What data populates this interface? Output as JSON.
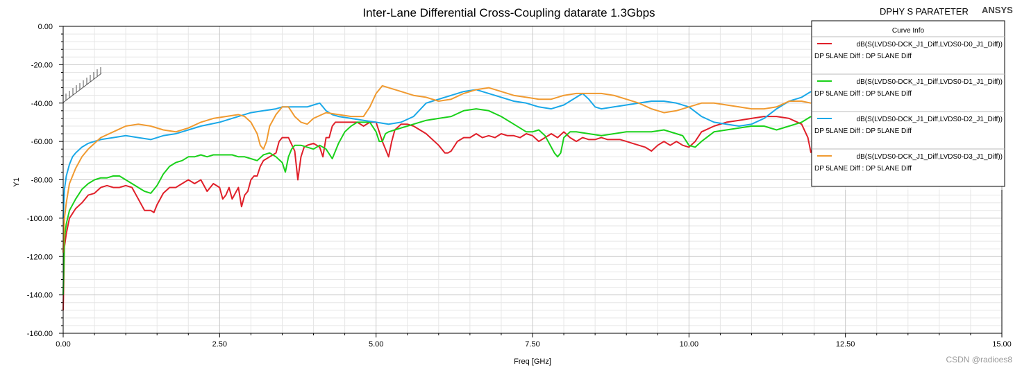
{
  "header": {
    "title": "Inter-Lane Differential Cross-Coupling datarate 1.3Gbps",
    "project": "DPHY S PARATETER",
    "brand": "ANSYS"
  },
  "watermark": "CSDN @radioes8",
  "chart_data": {
    "type": "line",
    "title": "Inter-Lane Differential Cross-Coupling datarate 1.3Gbps",
    "xlabel": "Freq [GHz]",
    "ylabel": "Y1",
    "xlim": [
      0,
      15
    ],
    "ylim": [
      -160,
      0
    ],
    "xticks": [
      0,
      2.5,
      5,
      7.5,
      10,
      12.5,
      15
    ],
    "xtick_labels": [
      "0.00",
      "2.50",
      "5.00",
      "7.50",
      "10.00",
      "12.50",
      "15.00"
    ],
    "yticks": [
      0,
      -20,
      -40,
      -60,
      -80,
      -100,
      -120,
      -140,
      -160
    ],
    "ytick_labels": [
      "0.00",
      "-20.00",
      "-40.00",
      "-60.00",
      "-80.00",
      "-100.00",
      "-120.00",
      "-140.00",
      "-160.00"
    ],
    "grid": true,
    "legend": {
      "title": "Curve Info",
      "position": "top-right"
    },
    "series": [
      {
        "name": "dB(S(LVDS0-DCK_J1_Diff,LVDS0-D0_J1_Diff))",
        "setup": "DP 5LANE Diff : DP 5LANE Diff",
        "color": "#e0202a",
        "x": [
          0,
          0.02,
          0.05,
          0.1,
          0.2,
          0.3,
          0.4,
          0.5,
          0.6,
          0.7,
          0.8,
          0.9,
          1.0,
          1.1,
          1.2,
          1.3,
          1.4,
          1.45,
          1.5,
          1.6,
          1.7,
          1.8,
          1.9,
          2.0,
          2.1,
          2.2,
          2.3,
          2.4,
          2.5,
          2.55,
          2.6,
          2.65,
          2.7,
          2.75,
          2.8,
          2.85,
          2.9,
          2.95,
          3.0,
          3.05,
          3.1,
          3.15,
          3.2,
          3.3,
          3.4,
          3.45,
          3.5,
          3.6,
          3.7,
          3.75,
          3.8,
          3.85,
          3.9,
          4.0,
          4.1,
          4.15,
          4.2,
          4.25,
          4.3,
          4.35,
          4.4,
          4.5,
          4.6,
          4.7,
          4.8,
          4.9,
          5.0,
          5.05,
          5.1,
          5.2,
          5.25,
          5.3,
          5.4,
          5.5,
          5.6,
          5.8,
          6.0,
          6.1,
          6.15,
          6.2,
          6.3,
          6.4,
          6.5,
          6.6,
          6.7,
          6.8,
          6.9,
          7.0,
          7.1,
          7.2,
          7.3,
          7.4,
          7.5,
          7.6,
          7.7,
          7.8,
          7.9,
          8.0,
          8.1,
          8.2,
          8.3,
          8.4,
          8.5,
          8.6,
          8.7,
          8.8,
          8.9,
          9.0,
          9.1,
          9.2,
          9.3,
          9.4,
          9.5,
          9.6,
          9.7,
          9.8,
          9.9,
          10.0,
          10.1,
          10.2,
          10.4,
          10.6,
          10.8,
          11.0,
          11.2,
          11.4,
          11.6,
          11.8,
          11.9,
          11.95
        ],
        "values": [
          -148,
          -115,
          -108,
          -100,
          -95,
          -92,
          -88,
          -87,
          -84,
          -83,
          -84,
          -84,
          -83,
          -84,
          -90,
          -96,
          -96,
          -97,
          -93,
          -87,
          -84,
          -84,
          -82,
          -80,
          -82,
          -80,
          -86,
          -82,
          -84,
          -90,
          -88,
          -84,
          -90,
          -87,
          -84,
          -94,
          -88,
          -86,
          -80,
          -78,
          -78,
          -73,
          -70,
          -68,
          -66,
          -60,
          -58,
          -58,
          -65,
          -80,
          -68,
          -63,
          -62,
          -61,
          -63,
          -68,
          -58,
          -58,
          -52,
          -50,
          -50,
          -50,
          -50,
          -50,
          -52,
          -50,
          -50,
          -55,
          -60,
          -68,
          -60,
          -54,
          -51,
          -51,
          -52,
          -56,
          -62,
          -66,
          -66,
          -65,
          -60,
          -58,
          -58,
          -56,
          -58,
          -57,
          -58,
          -56,
          -57,
          -57,
          -58,
          -56,
          -57,
          -60,
          -58,
          -56,
          -58,
          -55,
          -58,
          -60,
          -58,
          -59,
          -59,
          -58,
          -59,
          -59,
          -59,
          -60,
          -61,
          -62,
          -63,
          -65,
          -62,
          -60,
          -62,
          -60,
          -62,
          -63,
          -60,
          -55,
          -52,
          -50,
          -49,
          -48,
          -47,
          -47,
          -48,
          -51,
          -58,
          -66
        ]
      },
      {
        "name": "dB(S(LVDS0-DCK_J1_Diff,LVDS0-D1_J1_Diff))",
        "setup": "DP 5LANE Diff : DP 5LANE Diff",
        "color": "#1ad11a",
        "x": [
          0,
          0.02,
          0.05,
          0.1,
          0.2,
          0.3,
          0.4,
          0.5,
          0.6,
          0.7,
          0.8,
          0.9,
          1.0,
          1.1,
          1.2,
          1.3,
          1.4,
          1.5,
          1.6,
          1.7,
          1.8,
          1.9,
          2.0,
          2.1,
          2.2,
          2.3,
          2.4,
          2.5,
          2.6,
          2.7,
          2.8,
          2.9,
          3.0,
          3.1,
          3.2,
          3.3,
          3.4,
          3.5,
          3.55,
          3.6,
          3.65,
          3.7,
          3.8,
          3.9,
          4.0,
          4.1,
          4.2,
          4.3,
          4.4,
          4.5,
          4.6,
          4.7,
          4.8,
          4.9,
          5.0,
          5.05,
          5.1,
          5.15,
          5.2,
          5.3,
          5.4,
          5.5,
          5.6,
          5.8,
          6.0,
          6.2,
          6.4,
          6.6,
          6.8,
          7.0,
          7.2,
          7.4,
          7.5,
          7.6,
          7.7,
          7.8,
          7.85,
          7.9,
          7.95,
          8.0,
          8.1,
          8.2,
          8.4,
          8.6,
          8.8,
          9.0,
          9.2,
          9.4,
          9.6,
          9.8,
          9.9,
          10.0,
          10.1,
          10.2,
          10.4,
          10.6,
          10.8,
          11.0,
          11.2,
          11.4,
          11.6,
          11.8,
          11.95
        ],
        "values": [
          -140,
          -110,
          -103,
          -96,
          -90,
          -85,
          -82,
          -80,
          -79,
          -79,
          -78,
          -78,
          -80,
          -82,
          -84,
          -86,
          -87,
          -83,
          -77,
          -73,
          -71,
          -70,
          -68,
          -68,
          -67,
          -68,
          -67,
          -67,
          -67,
          -67,
          -68,
          -68,
          -69,
          -70,
          -67,
          -66,
          -68,
          -71,
          -76,
          -68,
          -64,
          -62,
          -62,
          -63,
          -64,
          -62,
          -64,
          -69,
          -61,
          -55,
          -52,
          -50,
          -50,
          -50,
          -55,
          -60,
          -60,
          -56,
          -55,
          -54,
          -53,
          -52,
          -51,
          -49,
          -48,
          -47,
          -44,
          -43,
          -44,
          -47,
          -51,
          -55,
          -55,
          -54,
          -57,
          -63,
          -66,
          -68,
          -66,
          -58,
          -55,
          -55,
          -56,
          -57,
          -56,
          -55,
          -55,
          -55,
          -54,
          -56,
          -57,
          -62,
          -63,
          -60,
          -55,
          -54,
          -53,
          -52,
          -52,
          -54,
          -52,
          -50,
          -47
        ]
      },
      {
        "name": "dB(S(LVDS0-DCK_J1_Diff,LVDS0-D2_J1_Diff))",
        "setup": "DP 5LANE Diff : DP 5LANE Diff",
        "color": "#1aa8e8",
        "x": [
          0,
          0.02,
          0.05,
          0.1,
          0.15,
          0.2,
          0.3,
          0.4,
          0.5,
          0.6,
          0.8,
          1.0,
          1.2,
          1.4,
          1.6,
          1.8,
          2.0,
          2.2,
          2.5,
          2.8,
          3.0,
          3.2,
          3.4,
          3.5,
          3.6,
          3.8,
          3.9,
          4.0,
          4.1,
          4.2,
          4.3,
          4.4,
          4.6,
          4.8,
          5.0,
          5.2,
          5.4,
          5.6,
          5.8,
          5.9,
          6.0,
          6.2,
          6.4,
          6.6,
          6.8,
          7.0,
          7.2,
          7.4,
          7.6,
          7.8,
          8.0,
          8.2,
          8.3,
          8.4,
          8.5,
          8.6,
          8.8,
          9.0,
          9.2,
          9.4,
          9.6,
          9.8,
          10.0,
          10.2,
          10.4,
          10.6,
          10.8,
          11.0,
          11.2,
          11.4,
          11.6,
          11.8,
          11.95
        ],
        "values": [
          -100,
          -85,
          -78,
          -72,
          -68,
          -66,
          -63,
          -61,
          -60,
          -59,
          -58,
          -57,
          -58,
          -59,
          -57,
          -56,
          -54,
          -52,
          -50,
          -47,
          -45,
          -44,
          -43,
          -42,
          -42,
          -42,
          -42,
          -41,
          -40,
          -44,
          -46,
          -47,
          -48,
          -49,
          -50,
          -51,
          -50,
          -47,
          -40,
          -39,
          -38,
          -36,
          -34,
          -33,
          -35,
          -37,
          -39,
          -40,
          -42,
          -43,
          -41,
          -37,
          -35,
          -38,
          -42,
          -43,
          -42,
          -41,
          -40,
          -39,
          -39,
          -40,
          -42,
          -47,
          -50,
          -51,
          -52,
          -51,
          -48,
          -43,
          -39,
          -37,
          -34
        ]
      },
      {
        "name": "dB(S(LVDS0-DCK_J1_Diff,LVDS0-D3_J1_Diff))",
        "setup": "DP 5LANE Diff : DP 5LANE Diff",
        "color": "#f09a30",
        "x": [
          0,
          0.02,
          0.05,
          0.1,
          0.2,
          0.3,
          0.4,
          0.5,
          0.6,
          0.8,
          1.0,
          1.2,
          1.4,
          1.6,
          1.8,
          2.0,
          2.2,
          2.4,
          2.6,
          2.8,
          2.9,
          3.0,
          3.1,
          3.15,
          3.2,
          3.25,
          3.3,
          3.4,
          3.5,
          3.6,
          3.7,
          3.8,
          3.9,
          4.0,
          4.2,
          4.4,
          4.6,
          4.8,
          4.9,
          5.0,
          5.1,
          5.2,
          5.4,
          5.6,
          5.8,
          6.0,
          6.2,
          6.4,
          6.6,
          6.8,
          7.0,
          7.2,
          7.4,
          7.6,
          7.8,
          8.0,
          8.2,
          8.4,
          8.6,
          8.8,
          9.0,
          9.2,
          9.4,
          9.6,
          9.8,
          10.0,
          10.2,
          10.4,
          10.6,
          10.8,
          11.0,
          11.2,
          11.4,
          11.6,
          11.8,
          11.95
        ],
        "values": [
          -118,
          -100,
          -92,
          -82,
          -74,
          -68,
          -64,
          -61,
          -58,
          -55,
          -52,
          -51,
          -52,
          -54,
          -55,
          -53,
          -50,
          -48,
          -47,
          -46,
          -47,
          -50,
          -56,
          -62,
          -64,
          -60,
          -52,
          -46,
          -42,
          -42,
          -47,
          -50,
          -51,
          -48,
          -45,
          -46,
          -47,
          -47,
          -42,
          -35,
          -31,
          -32,
          -34,
          -36,
          -37,
          -39,
          -38,
          -35,
          -33,
          -32,
          -34,
          -36,
          -37,
          -38,
          -38,
          -36,
          -35,
          -35,
          -35,
          -36,
          -38,
          -40,
          -43,
          -45,
          -44,
          -42,
          -40,
          -40,
          -41,
          -42,
          -43,
          -43,
          -42,
          -39,
          -39,
          -40
        ]
      }
    ]
  }
}
